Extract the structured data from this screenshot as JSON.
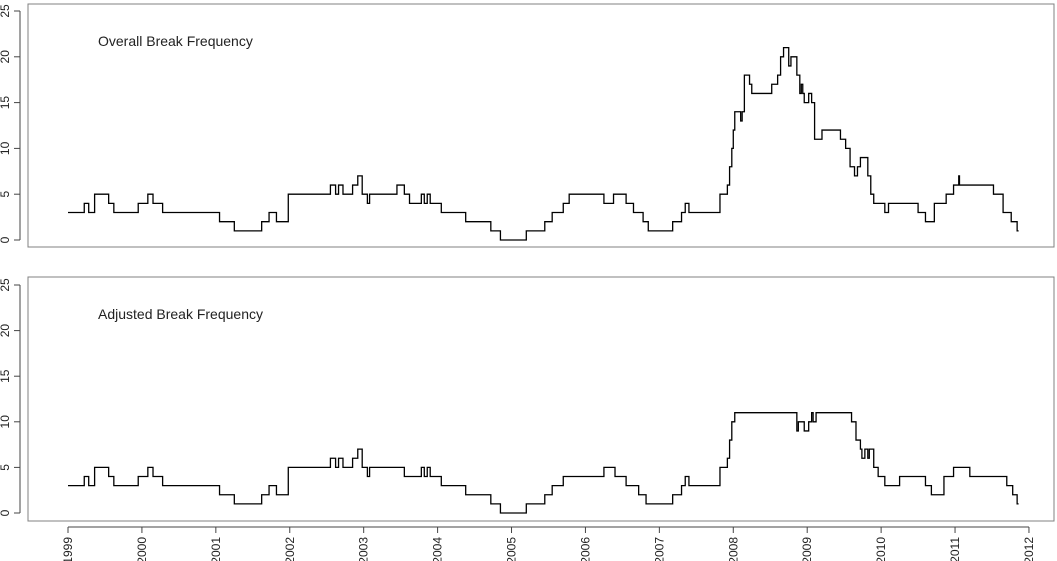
{
  "chart_data": [
    {
      "type": "line",
      "step": true,
      "annotation": "Overall Break Frequency",
      "ylim": [
        0,
        25
      ],
      "yticks": [
        0,
        5,
        10,
        15,
        20,
        25
      ],
      "xlim": [
        1999.0,
        2011.86
      ],
      "x_tick_labels": [],
      "grid": false,
      "color": "#000000",
      "points": [
        [
          1999.0,
          3
        ],
        [
          1999.22,
          3
        ],
        [
          1999.22,
          4
        ],
        [
          1999.28,
          4
        ],
        [
          1999.28,
          3
        ],
        [
          1999.36,
          3
        ],
        [
          1999.36,
          5
        ],
        [
          1999.55,
          5
        ],
        [
          1999.55,
          4
        ],
        [
          1999.62,
          4
        ],
        [
          1999.62,
          3
        ],
        [
          1999.95,
          3
        ],
        [
          1999.95,
          4
        ],
        [
          2000.08,
          4
        ],
        [
          2000.08,
          5
        ],
        [
          2000.15,
          5
        ],
        [
          2000.15,
          4
        ],
        [
          2000.28,
          4
        ],
        [
          2000.28,
          3
        ],
        [
          2001.05,
          3
        ],
        [
          2001.05,
          2
        ],
        [
          2001.25,
          2
        ],
        [
          2001.25,
          1
        ],
        [
          2001.62,
          1
        ],
        [
          2001.62,
          2
        ],
        [
          2001.72,
          2
        ],
        [
          2001.72,
          3
        ],
        [
          2001.82,
          3
        ],
        [
          2001.82,
          2
        ],
        [
          2001.98,
          2
        ],
        [
          2001.98,
          5
        ],
        [
          2002.55,
          5
        ],
        [
          2002.55,
          6
        ],
        [
          2002.62,
          6
        ],
        [
          2002.62,
          5
        ],
        [
          2002.66,
          5
        ],
        [
          2002.66,
          6
        ],
        [
          2002.72,
          6
        ],
        [
          2002.72,
          5
        ],
        [
          2002.85,
          5
        ],
        [
          2002.85,
          6
        ],
        [
          2002.92,
          6
        ],
        [
          2002.92,
          7
        ],
        [
          2002.98,
          7
        ],
        [
          2002.98,
          5
        ],
        [
          2003.05,
          5
        ],
        [
          2003.05,
          4
        ],
        [
          2003.08,
          4
        ],
        [
          2003.08,
          5
        ],
        [
          2003.45,
          5
        ],
        [
          2003.45,
          6
        ],
        [
          2003.55,
          6
        ],
        [
          2003.55,
          5
        ],
        [
          2003.62,
          5
        ],
        [
          2003.62,
          4
        ],
        [
          2003.78,
          4
        ],
        [
          2003.78,
          5
        ],
        [
          2003.82,
          5
        ],
        [
          2003.82,
          4
        ],
        [
          2003.86,
          4
        ],
        [
          2003.86,
          5
        ],
        [
          2003.9,
          5
        ],
        [
          2003.9,
          4
        ],
        [
          2004.05,
          4
        ],
        [
          2004.05,
          3
        ],
        [
          2004.38,
          3
        ],
        [
          2004.38,
          2
        ],
        [
          2004.72,
          2
        ],
        [
          2004.72,
          1
        ],
        [
          2004.85,
          1
        ],
        [
          2004.85,
          0
        ],
        [
          2005.2,
          0
        ],
        [
          2005.2,
          1
        ],
        [
          2005.45,
          1
        ],
        [
          2005.45,
          2
        ],
        [
          2005.55,
          2
        ],
        [
          2005.55,
          3
        ],
        [
          2005.7,
          3
        ],
        [
          2005.7,
          4
        ],
        [
          2005.78,
          4
        ],
        [
          2005.78,
          5
        ],
        [
          2006.25,
          5
        ],
        [
          2006.25,
          4
        ],
        [
          2006.38,
          4
        ],
        [
          2006.38,
          5
        ],
        [
          2006.55,
          5
        ],
        [
          2006.55,
          4
        ],
        [
          2006.65,
          4
        ],
        [
          2006.65,
          3
        ],
        [
          2006.78,
          3
        ],
        [
          2006.78,
          2
        ],
        [
          2006.85,
          2
        ],
        [
          2006.85,
          1
        ],
        [
          2007.18,
          1
        ],
        [
          2007.18,
          2
        ],
        [
          2007.3,
          2
        ],
        [
          2007.3,
          3
        ],
        [
          2007.35,
          3
        ],
        [
          2007.35,
          4
        ],
        [
          2007.4,
          4
        ],
        [
          2007.4,
          3
        ],
        [
          2007.82,
          3
        ],
        [
          2007.82,
          5
        ],
        [
          2007.92,
          5
        ],
        [
          2007.92,
          6
        ],
        [
          2007.95,
          6
        ],
        [
          2007.95,
          8
        ],
        [
          2007.98,
          8
        ],
        [
          2007.98,
          10
        ],
        [
          2008.0,
          10
        ],
        [
          2008.0,
          12
        ],
        [
          2008.02,
          12
        ],
        [
          2008.02,
          14
        ],
        [
          2008.1,
          14
        ],
        [
          2008.1,
          13
        ],
        [
          2008.12,
          13
        ],
        [
          2008.12,
          14
        ],
        [
          2008.15,
          14
        ],
        [
          2008.15,
          18
        ],
        [
          2008.22,
          18
        ],
        [
          2008.22,
          17
        ],
        [
          2008.25,
          17
        ],
        [
          2008.25,
          16
        ],
        [
          2008.52,
          16
        ],
        [
          2008.52,
          17
        ],
        [
          2008.6,
          17
        ],
        [
          2008.6,
          18
        ],
        [
          2008.64,
          18
        ],
        [
          2008.64,
          20
        ],
        [
          2008.68,
          20
        ],
        [
          2008.68,
          21
        ],
        [
          2008.75,
          21
        ],
        [
          2008.75,
          19
        ],
        [
          2008.78,
          19
        ],
        [
          2008.78,
          20
        ],
        [
          2008.86,
          20
        ],
        [
          2008.86,
          18
        ],
        [
          2008.9,
          18
        ],
        [
          2008.9,
          16
        ],
        [
          2008.92,
          16
        ],
        [
          2008.92,
          17
        ],
        [
          2008.94,
          17
        ],
        [
          2008.94,
          16
        ],
        [
          2008.96,
          16
        ],
        [
          2008.96,
          15
        ],
        [
          2009.02,
          15
        ],
        [
          2009.02,
          16
        ],
        [
          2009.06,
          16
        ],
        [
          2009.06,
          15
        ],
        [
          2009.1,
          15
        ],
        [
          2009.1,
          11
        ],
        [
          2009.2,
          11
        ],
        [
          2009.2,
          12
        ],
        [
          2009.45,
          12
        ],
        [
          2009.45,
          11
        ],
        [
          2009.52,
          11
        ],
        [
          2009.52,
          10
        ],
        [
          2009.58,
          10
        ],
        [
          2009.58,
          8
        ],
        [
          2009.64,
          8
        ],
        [
          2009.64,
          7
        ],
        [
          2009.68,
          7
        ],
        [
          2009.68,
          8
        ],
        [
          2009.72,
          8
        ],
        [
          2009.72,
          9
        ],
        [
          2009.82,
          9
        ],
        [
          2009.82,
          7
        ],
        [
          2009.86,
          7
        ],
        [
          2009.86,
          5
        ],
        [
          2009.9,
          5
        ],
        [
          2009.9,
          4
        ],
        [
          2010.05,
          4
        ],
        [
          2010.05,
          3
        ],
        [
          2010.1,
          3
        ],
        [
          2010.1,
          4
        ],
        [
          2010.5,
          4
        ],
        [
          2010.5,
          3
        ],
        [
          2010.6,
          3
        ],
        [
          2010.6,
          2
        ],
        [
          2010.72,
          2
        ],
        [
          2010.72,
          4
        ],
        [
          2010.88,
          4
        ],
        [
          2010.88,
          5
        ],
        [
          2010.98,
          5
        ],
        [
          2010.98,
          6
        ],
        [
          2011.05,
          6
        ],
        [
          2011.05,
          7
        ],
        [
          2011.06,
          7
        ],
        [
          2011.06,
          6
        ],
        [
          2011.52,
          6
        ],
        [
          2011.52,
          5
        ],
        [
          2011.65,
          5
        ],
        [
          2011.65,
          3
        ],
        [
          2011.76,
          3
        ],
        [
          2011.76,
          2
        ],
        [
          2011.84,
          2
        ],
        [
          2011.84,
          1
        ],
        [
          2011.86,
          1
        ]
      ]
    },
    {
      "type": "line",
      "step": true,
      "annotation": "Adjusted Break Frequency",
      "ylim": [
        0,
        25
      ],
      "yticks": [
        0,
        5,
        10,
        15,
        20,
        25
      ],
      "xlim": [
        1999.0,
        2011.86
      ],
      "x_tick_labels": [
        "1999",
        "2000",
        "2001",
        "2002",
        "2003",
        "2004",
        "2005",
        "2006",
        "2007",
        "2008",
        "2009",
        "2010",
        "2011",
        "2012"
      ],
      "grid": false,
      "color": "#000000",
      "points": [
        [
          1999.0,
          3
        ],
        [
          1999.22,
          3
        ],
        [
          1999.22,
          4
        ],
        [
          1999.28,
          4
        ],
        [
          1999.28,
          3
        ],
        [
          1999.36,
          3
        ],
        [
          1999.36,
          5
        ],
        [
          1999.55,
          5
        ],
        [
          1999.55,
          4
        ],
        [
          1999.62,
          4
        ],
        [
          1999.62,
          3
        ],
        [
          1999.95,
          3
        ],
        [
          1999.95,
          4
        ],
        [
          2000.08,
          4
        ],
        [
          2000.08,
          5
        ],
        [
          2000.15,
          5
        ],
        [
          2000.15,
          4
        ],
        [
          2000.28,
          4
        ],
        [
          2000.28,
          3
        ],
        [
          2001.05,
          3
        ],
        [
          2001.05,
          2
        ],
        [
          2001.25,
          2
        ],
        [
          2001.25,
          1
        ],
        [
          2001.62,
          1
        ],
        [
          2001.62,
          2
        ],
        [
          2001.72,
          2
        ],
        [
          2001.72,
          3
        ],
        [
          2001.82,
          3
        ],
        [
          2001.82,
          2
        ],
        [
          2001.98,
          2
        ],
        [
          2001.98,
          5
        ],
        [
          2002.55,
          5
        ],
        [
          2002.55,
          6
        ],
        [
          2002.62,
          6
        ],
        [
          2002.62,
          5
        ],
        [
          2002.66,
          5
        ],
        [
          2002.66,
          6
        ],
        [
          2002.72,
          6
        ],
        [
          2002.72,
          5
        ],
        [
          2002.85,
          5
        ],
        [
          2002.85,
          6
        ],
        [
          2002.92,
          6
        ],
        [
          2002.92,
          7
        ],
        [
          2002.98,
          7
        ],
        [
          2002.98,
          5
        ],
        [
          2003.05,
          5
        ],
        [
          2003.05,
          4
        ],
        [
          2003.08,
          4
        ],
        [
          2003.08,
          5
        ],
        [
          2003.55,
          5
        ],
        [
          2003.55,
          4
        ],
        [
          2003.78,
          4
        ],
        [
          2003.78,
          5
        ],
        [
          2003.82,
          5
        ],
        [
          2003.82,
          4
        ],
        [
          2003.86,
          4
        ],
        [
          2003.86,
          5
        ],
        [
          2003.9,
          5
        ],
        [
          2003.9,
          4
        ],
        [
          2004.05,
          4
        ],
        [
          2004.05,
          3
        ],
        [
          2004.38,
          3
        ],
        [
          2004.38,
          2
        ],
        [
          2004.72,
          2
        ],
        [
          2004.72,
          1
        ],
        [
          2004.85,
          1
        ],
        [
          2004.85,
          0
        ],
        [
          2005.2,
          0
        ],
        [
          2005.2,
          1
        ],
        [
          2005.45,
          1
        ],
        [
          2005.45,
          2
        ],
        [
          2005.55,
          2
        ],
        [
          2005.55,
          3
        ],
        [
          2005.7,
          3
        ],
        [
          2005.7,
          4
        ],
        [
          2006.25,
          4
        ],
        [
          2006.25,
          5
        ],
        [
          2006.4,
          5
        ],
        [
          2006.4,
          4
        ],
        [
          2006.55,
          4
        ],
        [
          2006.55,
          3
        ],
        [
          2006.72,
          3
        ],
        [
          2006.72,
          2
        ],
        [
          2006.82,
          2
        ],
        [
          2006.82,
          1
        ],
        [
          2007.18,
          1
        ],
        [
          2007.18,
          2
        ],
        [
          2007.3,
          2
        ],
        [
          2007.3,
          3
        ],
        [
          2007.35,
          3
        ],
        [
          2007.35,
          4
        ],
        [
          2007.4,
          4
        ],
        [
          2007.4,
          3
        ],
        [
          2007.82,
          3
        ],
        [
          2007.82,
          5
        ],
        [
          2007.92,
          5
        ],
        [
          2007.92,
          6
        ],
        [
          2007.95,
          6
        ],
        [
          2007.95,
          8
        ],
        [
          2007.98,
          8
        ],
        [
          2007.98,
          10
        ],
        [
          2008.02,
          10
        ],
        [
          2008.02,
          11
        ],
        [
          2008.62,
          11
        ],
        [
          2008.62,
          11
        ],
        [
          2008.86,
          11
        ],
        [
          2008.86,
          9
        ],
        [
          2008.88,
          9
        ],
        [
          2008.88,
          10
        ],
        [
          2008.96,
          10
        ],
        [
          2008.96,
          9
        ],
        [
          2009.02,
          9
        ],
        [
          2009.02,
          10
        ],
        [
          2009.06,
          10
        ],
        [
          2009.06,
          11
        ],
        [
          2009.08,
          11
        ],
        [
          2009.08,
          10
        ],
        [
          2009.12,
          10
        ],
        [
          2009.12,
          11
        ],
        [
          2009.6,
          11
        ],
        [
          2009.6,
          10
        ],
        [
          2009.66,
          10
        ],
        [
          2009.66,
          8
        ],
        [
          2009.72,
          8
        ],
        [
          2009.72,
          7
        ],
        [
          2009.74,
          7
        ],
        [
          2009.74,
          6
        ],
        [
          2009.78,
          6
        ],
        [
          2009.78,
          7
        ],
        [
          2009.82,
          7
        ],
        [
          2009.82,
          6
        ],
        [
          2009.84,
          6
        ],
        [
          2009.84,
          7
        ],
        [
          2009.9,
          7
        ],
        [
          2009.9,
          5
        ],
        [
          2009.96,
          5
        ],
        [
          2009.96,
          4
        ],
        [
          2010.05,
          4
        ],
        [
          2010.05,
          3
        ],
        [
          2010.25,
          3
        ],
        [
          2010.25,
          4
        ],
        [
          2010.6,
          4
        ],
        [
          2010.6,
          3
        ],
        [
          2010.68,
          3
        ],
        [
          2010.68,
          2
        ],
        [
          2010.85,
          2
        ],
        [
          2010.85,
          4
        ],
        [
          2010.98,
          4
        ],
        [
          2010.98,
          5
        ],
        [
          2011.2,
          5
        ],
        [
          2011.2,
          4
        ],
        [
          2011.7,
          4
        ],
        [
          2011.7,
          3
        ],
        [
          2011.78,
          3
        ],
        [
          2011.78,
          2
        ],
        [
          2011.84,
          2
        ],
        [
          2011.84,
          1
        ],
        [
          2011.86,
          1
        ]
      ]
    }
  ]
}
